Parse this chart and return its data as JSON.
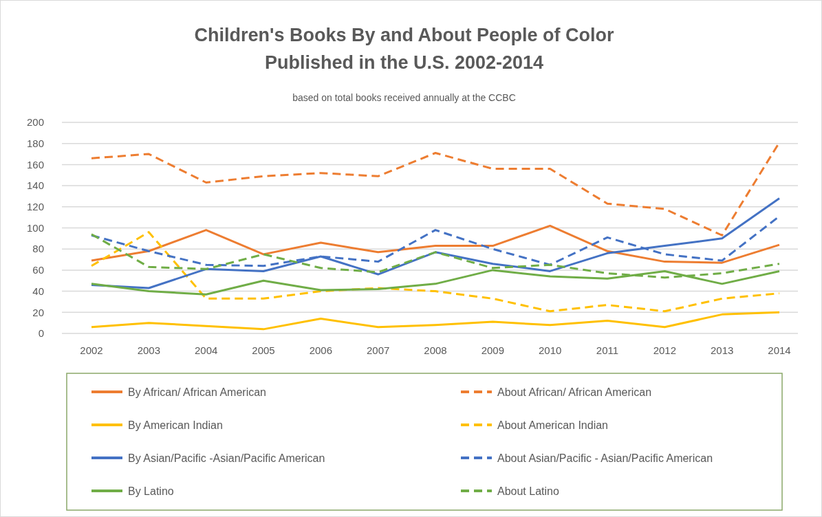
{
  "chart_data": {
    "type": "line",
    "title": "Children's Books By and About People of Color\nPublished in the U.S. 2002-2014",
    "subtitle": "based on total books received annually at the CCBC",
    "categories": [
      "2002",
      "2003",
      "2004",
      "2005",
      "2006",
      "2007",
      "2008",
      "2009",
      "2010",
      "2011",
      "2012",
      "2013",
      "2014"
    ],
    "ylim": [
      0,
      200
    ],
    "yticks": [
      0,
      20,
      40,
      60,
      80,
      100,
      120,
      140,
      160,
      180,
      200
    ],
    "grid": "y",
    "legend": "bottom",
    "marker": "none",
    "series": [
      {
        "name": "By African/ African American",
        "color": "#ed7d31",
        "line_style": "solid",
        "values": [
          69,
          78,
          98,
          75,
          86,
          77,
          83,
          83,
          102,
          78,
          68,
          67,
          84
        ]
      },
      {
        "name": "About African/ African American",
        "color": "#ed7d31",
        "line_style": "dashed",
        "values": [
          166,
          170,
          143,
          149,
          152,
          149,
          171,
          156,
          156,
          123,
          118,
          93,
          181
        ]
      },
      {
        "name": "By American Indian",
        "color": "#ffc000",
        "line_style": "solid",
        "values": [
          6,
          10,
          7,
          4,
          14,
          6,
          8,
          11,
          8,
          12,
          6,
          18,
          20
        ]
      },
      {
        "name": "About American Indian",
        "color": "#ffc000",
        "line_style": "dashed",
        "values": [
          64,
          96,
          33,
          33,
          40,
          43,
          40,
          33,
          21,
          27,
          21,
          33,
          38
        ]
      },
      {
        "name": "By Asian/Pacific -Asian/Pacific American",
        "color": "#4472c4",
        "line_style": "solid",
        "values": [
          46,
          43,
          61,
          59,
          73,
          56,
          77,
          66,
          59,
          76,
          83,
          90,
          128
        ]
      },
      {
        "name": "About Asian/Pacific - Asian/Pacific American",
        "color": "#4472c4",
        "line_style": "dashed",
        "values": [
          93,
          78,
          65,
          64,
          73,
          68,
          98,
          80,
          65,
          91,
          75,
          69,
          111
        ]
      },
      {
        "name": "By Latino",
        "color": "#70ad47",
        "line_style": "solid",
        "values": [
          47,
          40,
          37,
          50,
          41,
          42,
          47,
          60,
          54,
          52,
          59,
          47,
          59
        ]
      },
      {
        "name": "About Latino",
        "color": "#70ad47",
        "line_style": "dashed",
        "values": [
          94,
          63,
          61,
          75,
          62,
          58,
          77,
          62,
          65,
          57,
          53,
          57,
          66
        ]
      }
    ]
  }
}
